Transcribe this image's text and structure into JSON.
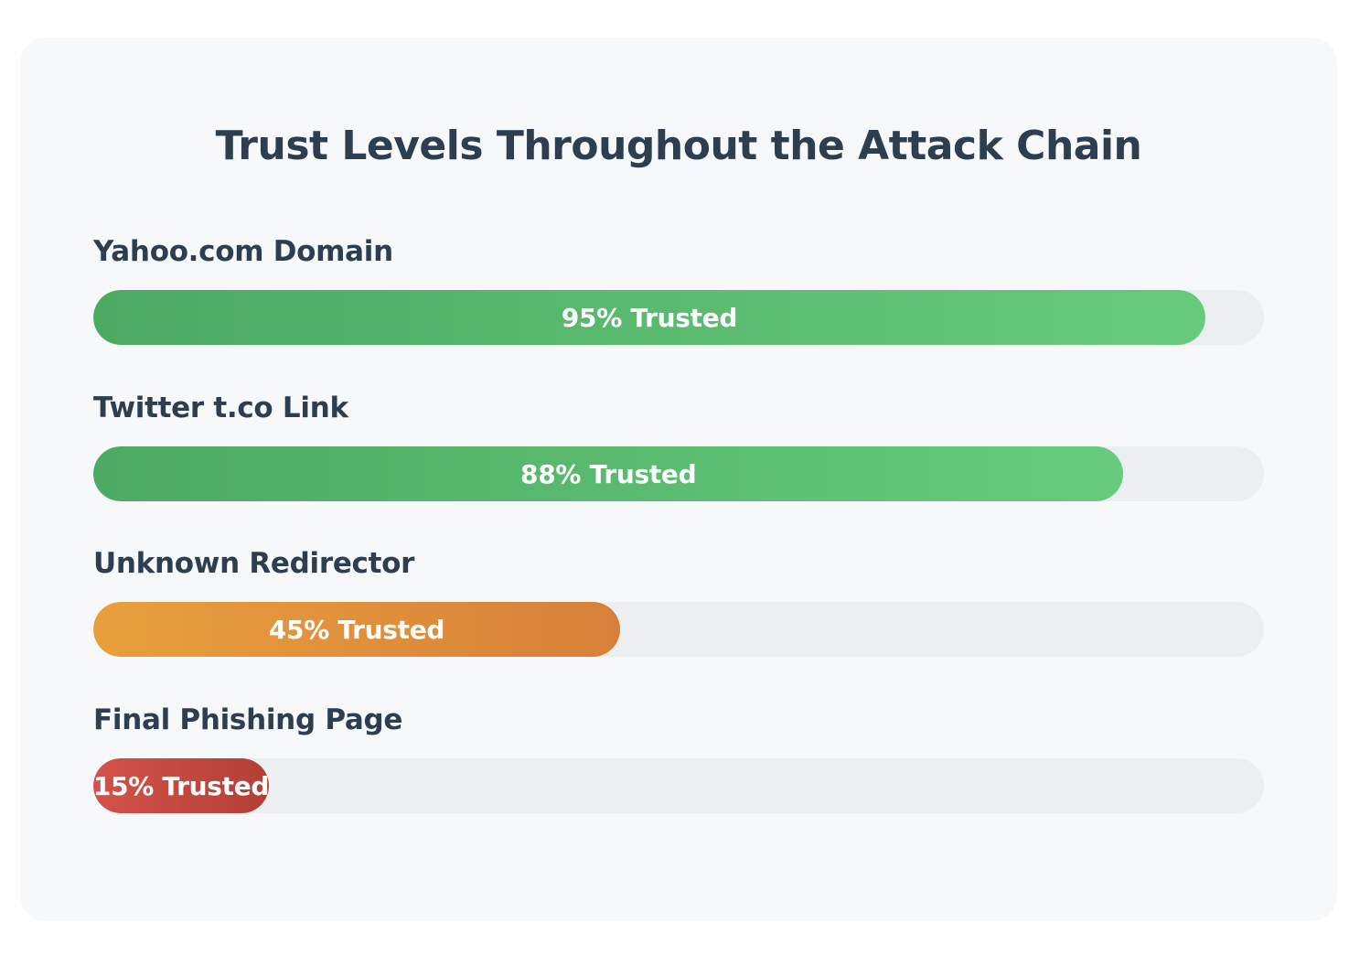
{
  "chart_data": {
    "type": "bar",
    "orientation": "horizontal",
    "title": "Trust Levels Throughout the Attack Chain",
    "xlim": [
      0,
      100
    ],
    "unit": "%",
    "bars": [
      {
        "category": "Yahoo.com Domain",
        "value": 95,
        "label": "95% Trusted",
        "color_start": "#4caa63",
        "color_end": "#67cb7c"
      },
      {
        "category": "Twitter t.co Link",
        "value": 88,
        "label": "88% Trusted",
        "color_start": "#4caa63",
        "color_end": "#67cb7c"
      },
      {
        "category": "Unknown Redirector",
        "value": 45,
        "label": "45% Trusted",
        "color_start": "#e8a03c",
        "color_end": "#d8803a"
      },
      {
        "category": "Final Phishing Page",
        "value": 15,
        "label": "15% Trusted",
        "color_start": "#d4524a",
        "color_end": "#b23f35"
      }
    ],
    "track_color": "#eceff1",
    "text_color": "#2c3e50"
  }
}
